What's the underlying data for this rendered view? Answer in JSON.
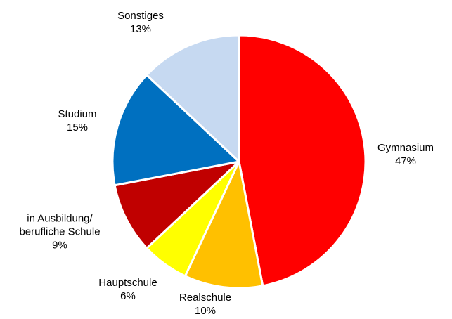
{
  "chart_data": {
    "type": "pie",
    "categories": [
      "Gymnasium",
      "Realschule",
      "Hauptschule",
      "in Ausbildung/\nberufliche Schule",
      "Studium",
      "Sonstiges"
    ],
    "values": [
      47,
      10,
      6,
      9,
      15,
      13
    ],
    "value_labels": [
      "47%",
      "10%",
      "6%",
      "9%",
      "15%",
      "13%"
    ],
    "colors": [
      "#ff0000",
      "#ffc000",
      "#ffff00",
      "#c00000",
      "#0070c0",
      "#c6d9f1"
    ]
  }
}
